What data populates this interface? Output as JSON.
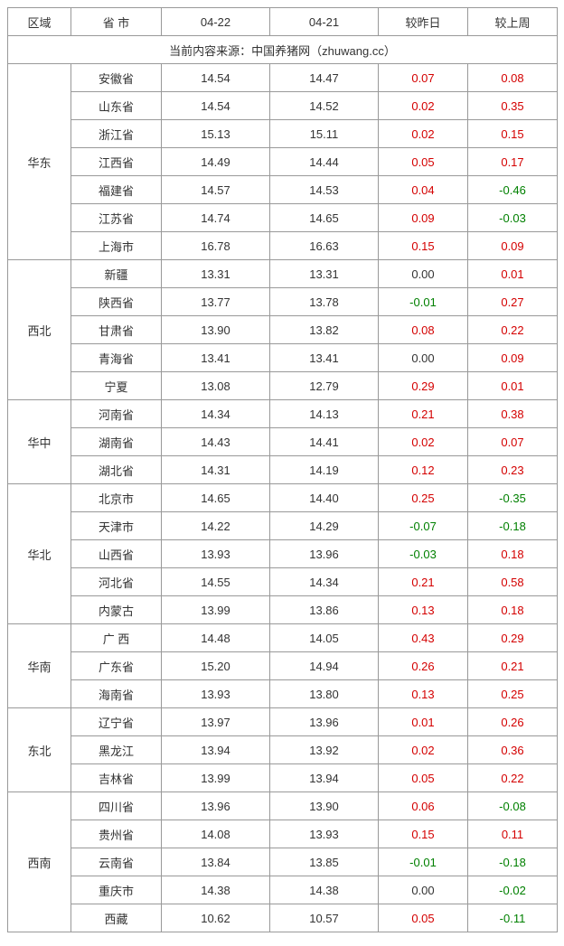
{
  "columns": [
    "区域",
    "省 市",
    "04-22",
    "04-21",
    "较昨日",
    "较上周"
  ],
  "source_line": "当前内容来源：中国养猪网（zhuwang.cc）",
  "colors": {
    "positive": "#d40000",
    "negative": "#008000",
    "neutral": "#333333",
    "border": "#999999",
    "background": "#ffffff"
  },
  "font": {
    "family": "Microsoft YaHei",
    "size_pt": 10
  },
  "regions": [
    {
      "name": "华东",
      "rows": [
        {
          "prov": "安徽省",
          "v1": "14.54",
          "v2": "14.47",
          "d1": "0.07",
          "d2": "0.08"
        },
        {
          "prov": "山东省",
          "v1": "14.54",
          "v2": "14.52",
          "d1": "0.02",
          "d2": "0.35"
        },
        {
          "prov": "浙江省",
          "v1": "15.13",
          "v2": "15.11",
          "d1": "0.02",
          "d2": "0.15"
        },
        {
          "prov": "江西省",
          "v1": "14.49",
          "v2": "14.44",
          "d1": "0.05",
          "d2": "0.17"
        },
        {
          "prov": "福建省",
          "v1": "14.57",
          "v2": "14.53",
          "d1": "0.04",
          "d2": "-0.46"
        },
        {
          "prov": "江苏省",
          "v1": "14.74",
          "v2": "14.65",
          "d1": "0.09",
          "d2": "-0.03"
        },
        {
          "prov": "上海市",
          "v1": "16.78",
          "v2": "16.63",
          "d1": "0.15",
          "d2": "0.09"
        }
      ]
    },
    {
      "name": "西北",
      "rows": [
        {
          "prov": "新疆",
          "v1": "13.31",
          "v2": "13.31",
          "d1": "0.00",
          "d2": "0.01"
        },
        {
          "prov": "陕西省",
          "v1": "13.77",
          "v2": "13.78",
          "d1": "-0.01",
          "d2": "0.27"
        },
        {
          "prov": "甘肃省",
          "v1": "13.90",
          "v2": "13.82",
          "d1": "0.08",
          "d2": "0.22"
        },
        {
          "prov": "青海省",
          "v1": "13.41",
          "v2": "13.41",
          "d1": "0.00",
          "d2": "0.09"
        },
        {
          "prov": "宁夏",
          "v1": "13.08",
          "v2": "12.79",
          "d1": "0.29",
          "d2": "0.01"
        }
      ]
    },
    {
      "name": "华中",
      "rows": [
        {
          "prov": "河南省",
          "v1": "14.34",
          "v2": "14.13",
          "d1": "0.21",
          "d2": "0.38"
        },
        {
          "prov": "湖南省",
          "v1": "14.43",
          "v2": "14.41",
          "d1": "0.02",
          "d2": "0.07"
        },
        {
          "prov": "湖北省",
          "v1": "14.31",
          "v2": "14.19",
          "d1": "0.12",
          "d2": "0.23"
        }
      ]
    },
    {
      "name": "华北",
      "rows": [
        {
          "prov": "北京市",
          "v1": "14.65",
          "v2": "14.40",
          "d1": "0.25",
          "d2": "-0.35"
        },
        {
          "prov": "天津市",
          "v1": "14.22",
          "v2": "14.29",
          "d1": "-0.07",
          "d2": "-0.18"
        },
        {
          "prov": "山西省",
          "v1": "13.93",
          "v2": "13.96",
          "d1": "-0.03",
          "d2": "0.18"
        },
        {
          "prov": "河北省",
          "v1": "14.55",
          "v2": "14.34",
          "d1": "0.21",
          "d2": "0.58"
        },
        {
          "prov": "内蒙古",
          "v1": "13.99",
          "v2": "13.86",
          "d1": "0.13",
          "d2": "0.18"
        }
      ]
    },
    {
      "name": "华南",
      "rows": [
        {
          "prov": "广 西",
          "v1": "14.48",
          "v2": "14.05",
          "d1": "0.43",
          "d2": "0.29"
        },
        {
          "prov": "广东省",
          "v1": "15.20",
          "v2": "14.94",
          "d1": "0.26",
          "d2": "0.21"
        },
        {
          "prov": "海南省",
          "v1": "13.93",
          "v2": "13.80",
          "d1": "0.13",
          "d2": "0.25"
        }
      ]
    },
    {
      "name": "东北",
      "rows": [
        {
          "prov": "辽宁省",
          "v1": "13.97",
          "v2": "13.96",
          "d1": "0.01",
          "d2": "0.26"
        },
        {
          "prov": "黑龙江",
          "v1": "13.94",
          "v2": "13.92",
          "d1": "0.02",
          "d2": "0.36"
        },
        {
          "prov": "吉林省",
          "v1": "13.99",
          "v2": "13.94",
          "d1": "0.05",
          "d2": "0.22"
        }
      ]
    },
    {
      "name": "西南",
      "rows": [
        {
          "prov": "四川省",
          "v1": "13.96",
          "v2": "13.90",
          "d1": "0.06",
          "d2": "-0.08"
        },
        {
          "prov": "贵州省",
          "v1": "14.08",
          "v2": "13.93",
          "d1": "0.15",
          "d2": "0.11"
        },
        {
          "prov": "云南省",
          "v1": "13.84",
          "v2": "13.85",
          "d1": "-0.01",
          "d2": "-0.18"
        },
        {
          "prov": "重庆市",
          "v1": "14.38",
          "v2": "14.38",
          "d1": "0.00",
          "d2": "-0.02"
        },
        {
          "prov": "西藏",
          "v1": "10.62",
          "v2": "10.57",
          "d1": "0.05",
          "d2": "-0.11"
        }
      ]
    }
  ]
}
